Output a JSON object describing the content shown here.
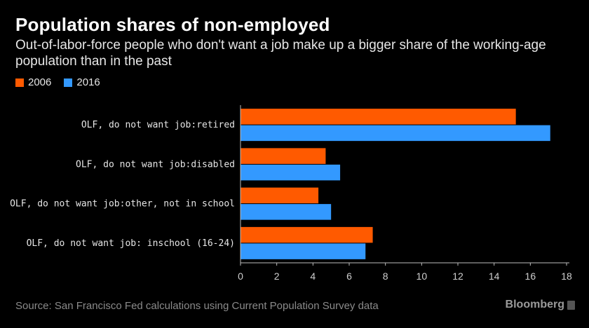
{
  "header": {
    "title": "Population shares of non-employed",
    "subtitle": "Out-of-labor-force people who don't want a job make up a bigger share of the working-age population than in the past"
  },
  "legend": [
    {
      "label": "2006",
      "color": "#ff5a00"
    },
    {
      "label": "2016",
      "color": "#3399ff"
    }
  ],
  "footer": {
    "source": "Source: San Francisco Fed calculations using Current Population Survey data",
    "brand": "Bloomberg"
  },
  "chart_data": {
    "type": "bar",
    "orientation": "horizontal",
    "categories": [
      "OLF, do not want job:retired",
      "OLF, do not want job:disabled",
      "OLF, do not want job:other, not in school",
      "OLF, do not want job: inschool (16-24)"
    ],
    "series": [
      {
        "name": "2006",
        "color": "#ff5a00",
        "values": [
          15.2,
          4.7,
          4.3,
          7.3
        ]
      },
      {
        "name": "2016",
        "color": "#3399ff",
        "values": [
          17.1,
          5.5,
          5.0,
          6.9
        ]
      }
    ],
    "xlim": [
      0,
      18
    ],
    "xticks": [
      0,
      2,
      4,
      6,
      8,
      10,
      12,
      14,
      16,
      18
    ],
    "grid": false,
    "legend_position": "top-left"
  }
}
